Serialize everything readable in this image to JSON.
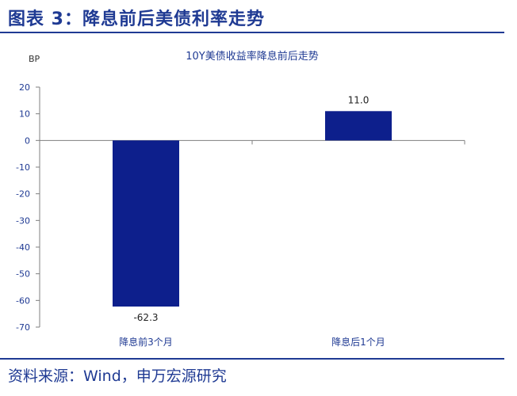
{
  "figure": {
    "title": "图表 3：降息前后美债利率走势",
    "source": "资料来源：Wind，申万宏源研究"
  },
  "chart_data": {
    "type": "bar",
    "title": "10Y美债收益率降息前后走势",
    "ylabel": "BP",
    "xlabel": "",
    "categories": [
      "降息前3个月",
      "降息后1个月"
    ],
    "values": [
      -62.3,
      11.0
    ],
    "value_labels": [
      "-62.3",
      "11.0"
    ],
    "ylim": [
      -70,
      20
    ],
    "yticks": [
      20,
      10,
      0,
      -10,
      -20,
      -30,
      -40,
      -50,
      -60,
      -70
    ],
    "grid": false,
    "legend": "none",
    "colors": {
      "bar": "#0d1f8c",
      "axis": "#7f7f7f",
      "tick_label": "#1f3a93",
      "title": "#1f3a93"
    }
  }
}
